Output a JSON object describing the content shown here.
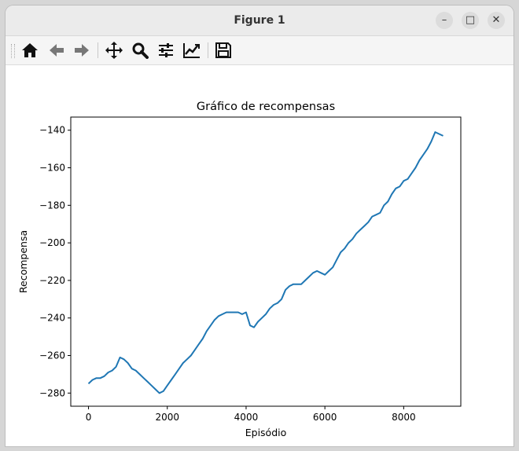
{
  "window": {
    "title": "Figure 1"
  },
  "controls": {
    "minimize": "–",
    "maximize": "□",
    "close": "✕"
  },
  "toolbar": {
    "buttons": [
      "home-icon",
      "back-icon",
      "forward-icon",
      "pan-icon",
      "zoom-icon",
      "configure-subplots-icon",
      "edit-axis-icon",
      "save-icon"
    ]
  },
  "chart_data": {
    "type": "line",
    "title": "Gráfico de recompensas",
    "xlabel": "Episódio",
    "ylabel": "Recompensa",
    "xlim": [
      -450,
      9450
    ],
    "ylim": [
      -287,
      -133
    ],
    "xticks": [
      0,
      2000,
      4000,
      6000,
      8000
    ],
    "yticks": [
      -140,
      -160,
      -180,
      -200,
      -220,
      -240,
      -260,
      -280
    ],
    "color": "#1f77b4",
    "series": [
      {
        "x": [
          0,
          100,
          200,
          300,
          400,
          500,
          600,
          700,
          800,
          900,
          1000,
          1100,
          1200,
          1300,
          1400,
          1500,
          1600,
          1700,
          1800,
          1900,
          2000,
          2100,
          2200,
          2300,
          2400,
          2500,
          2600,
          2700,
          2800,
          2900,
          3000,
          3100,
          3200,
          3300,
          3400,
          3500,
          3600,
          3700,
          3800,
          3900,
          4000,
          4100,
          4200,
          4300,
          4400,
          4500,
          4600,
          4700,
          4800,
          4900,
          5000,
          5100,
          5200,
          5300,
          5400,
          5500,
          5600,
          5700,
          5800,
          5900,
          6000,
          6100,
          6200,
          6300,
          6400,
          6500,
          6600,
          6700,
          6800,
          6900,
          7000,
          7100,
          7200,
          7300,
          7400,
          7500,
          7600,
          7700,
          7800,
          7900,
          8000,
          8100,
          8200,
          8300,
          8400,
          8500,
          8600,
          8700,
          8800,
          8900,
          9000
        ],
        "y": [
          -275,
          -273,
          -272,
          -272,
          -271,
          -269,
          -268,
          -266,
          -261,
          -262,
          -264,
          -267,
          -268,
          -270,
          -272,
          -274,
          -276,
          -278,
          -280,
          -279,
          -276,
          -273,
          -270,
          -267,
          -264,
          -262,
          -260,
          -257,
          -254,
          -251,
          -247,
          -244,
          -241,
          -239,
          -238,
          -237,
          -237,
          -237,
          -237,
          -238,
          -237,
          -244,
          -245,
          -242,
          -240,
          -238,
          -235,
          -233,
          -232,
          -230,
          -225,
          -223,
          -222,
          -222,
          -222,
          -220,
          -218,
          -216,
          -215,
          -216,
          -217,
          -215,
          -213,
          -209,
          -205,
          -203,
          -200,
          -198,
          -195,
          -193,
          -191,
          -189,
          -186,
          -185,
          -184,
          -180,
          -178,
          -174,
          -171,
          -170,
          -167,
          -166,
          -163,
          -160,
          -156,
          -153,
          -150,
          -146,
          -141,
          -142,
          -143
        ]
      }
    ]
  }
}
